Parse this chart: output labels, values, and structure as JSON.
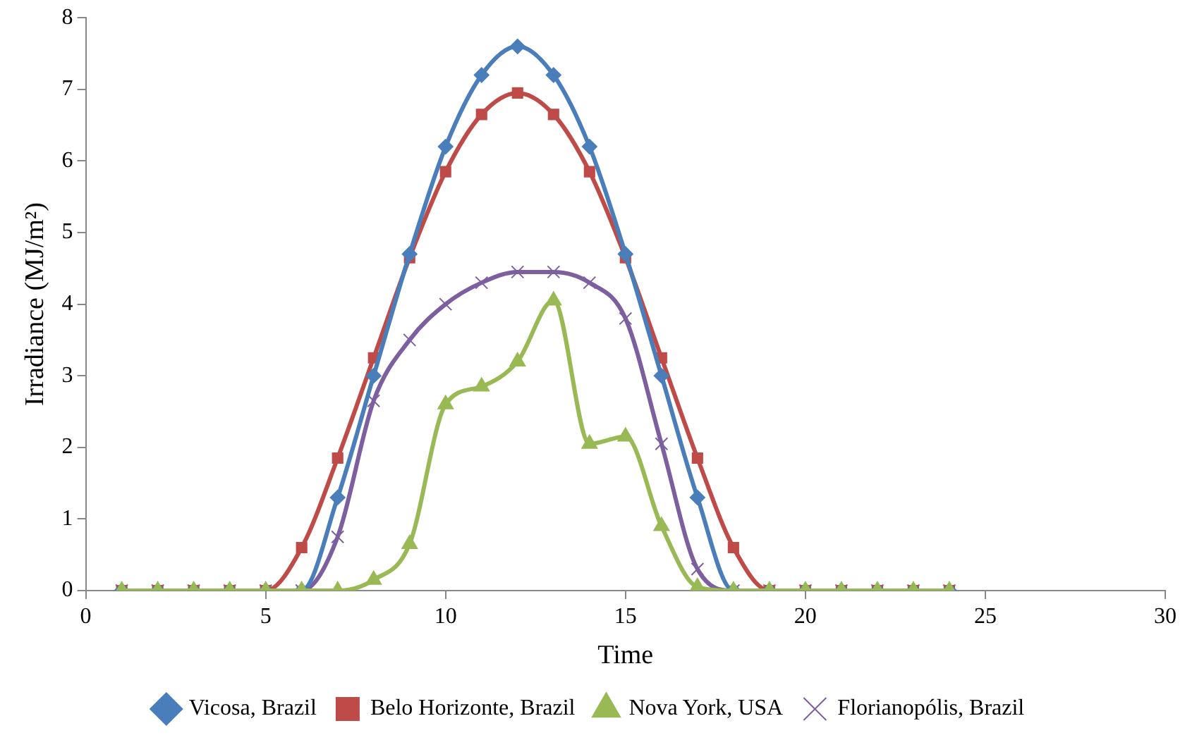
{
  "chart_data": {
    "type": "line",
    "xlabel": "Time",
    "ylabel": "Irradiance (MJ/m²)",
    "x": [
      1,
      2,
      3,
      4,
      5,
      6,
      7,
      8,
      9,
      10,
      11,
      12,
      13,
      14,
      15,
      16,
      17,
      18,
      19,
      20,
      21,
      22,
      23,
      24
    ],
    "xlim": [
      0,
      30
    ],
    "xticks": [
      0,
      5,
      10,
      15,
      20,
      25,
      30
    ],
    "ylim": [
      0,
      8
    ],
    "yticks": [
      0,
      1,
      2,
      3,
      4,
      5,
      6,
      7,
      8
    ],
    "grid": false,
    "legend": "bottom",
    "series": [
      {
        "name": "Vicosa, Brazil",
        "color": "#4a7ebb",
        "marker": "diamond",
        "values": [
          0,
          0,
          0,
          0,
          0,
          0,
          1.3,
          3.0,
          4.7,
          6.2,
          7.2,
          7.6,
          7.2,
          6.2,
          4.7,
          3.0,
          1.3,
          0,
          0,
          0,
          0,
          0,
          0,
          0
        ]
      },
      {
        "name": "Belo Horizonte, Brazil",
        "color": "#be4b48",
        "marker": "square",
        "values": [
          0,
          0,
          0,
          0,
          0,
          0.6,
          1.85,
          3.25,
          4.65,
          5.85,
          6.65,
          6.95,
          6.65,
          5.85,
          4.65,
          3.25,
          1.85,
          0.6,
          0,
          0,
          0,
          0,
          0,
          0
        ]
      },
      {
        "name": "Nova York, USA",
        "color": "#98b954",
        "marker": "triangle",
        "values": [
          0,
          0,
          0,
          0,
          0,
          0,
          0,
          0.15,
          0.65,
          2.6,
          2.85,
          3.2,
          4.05,
          2.05,
          2.15,
          0.9,
          0.05,
          0,
          0,
          0,
          0,
          0,
          0,
          0
        ]
      },
      {
        "name": "Florianopólis, Brazil",
        "color": "#7d5fa0",
        "marker": "cross",
        "values": [
          0,
          0,
          0,
          0,
          0,
          0,
          0.75,
          2.65,
          3.5,
          4.0,
          4.3,
          4.45,
          4.45,
          4.3,
          3.8,
          2.05,
          0.3,
          0,
          0,
          0,
          0,
          0,
          0,
          0
        ]
      }
    ]
  }
}
